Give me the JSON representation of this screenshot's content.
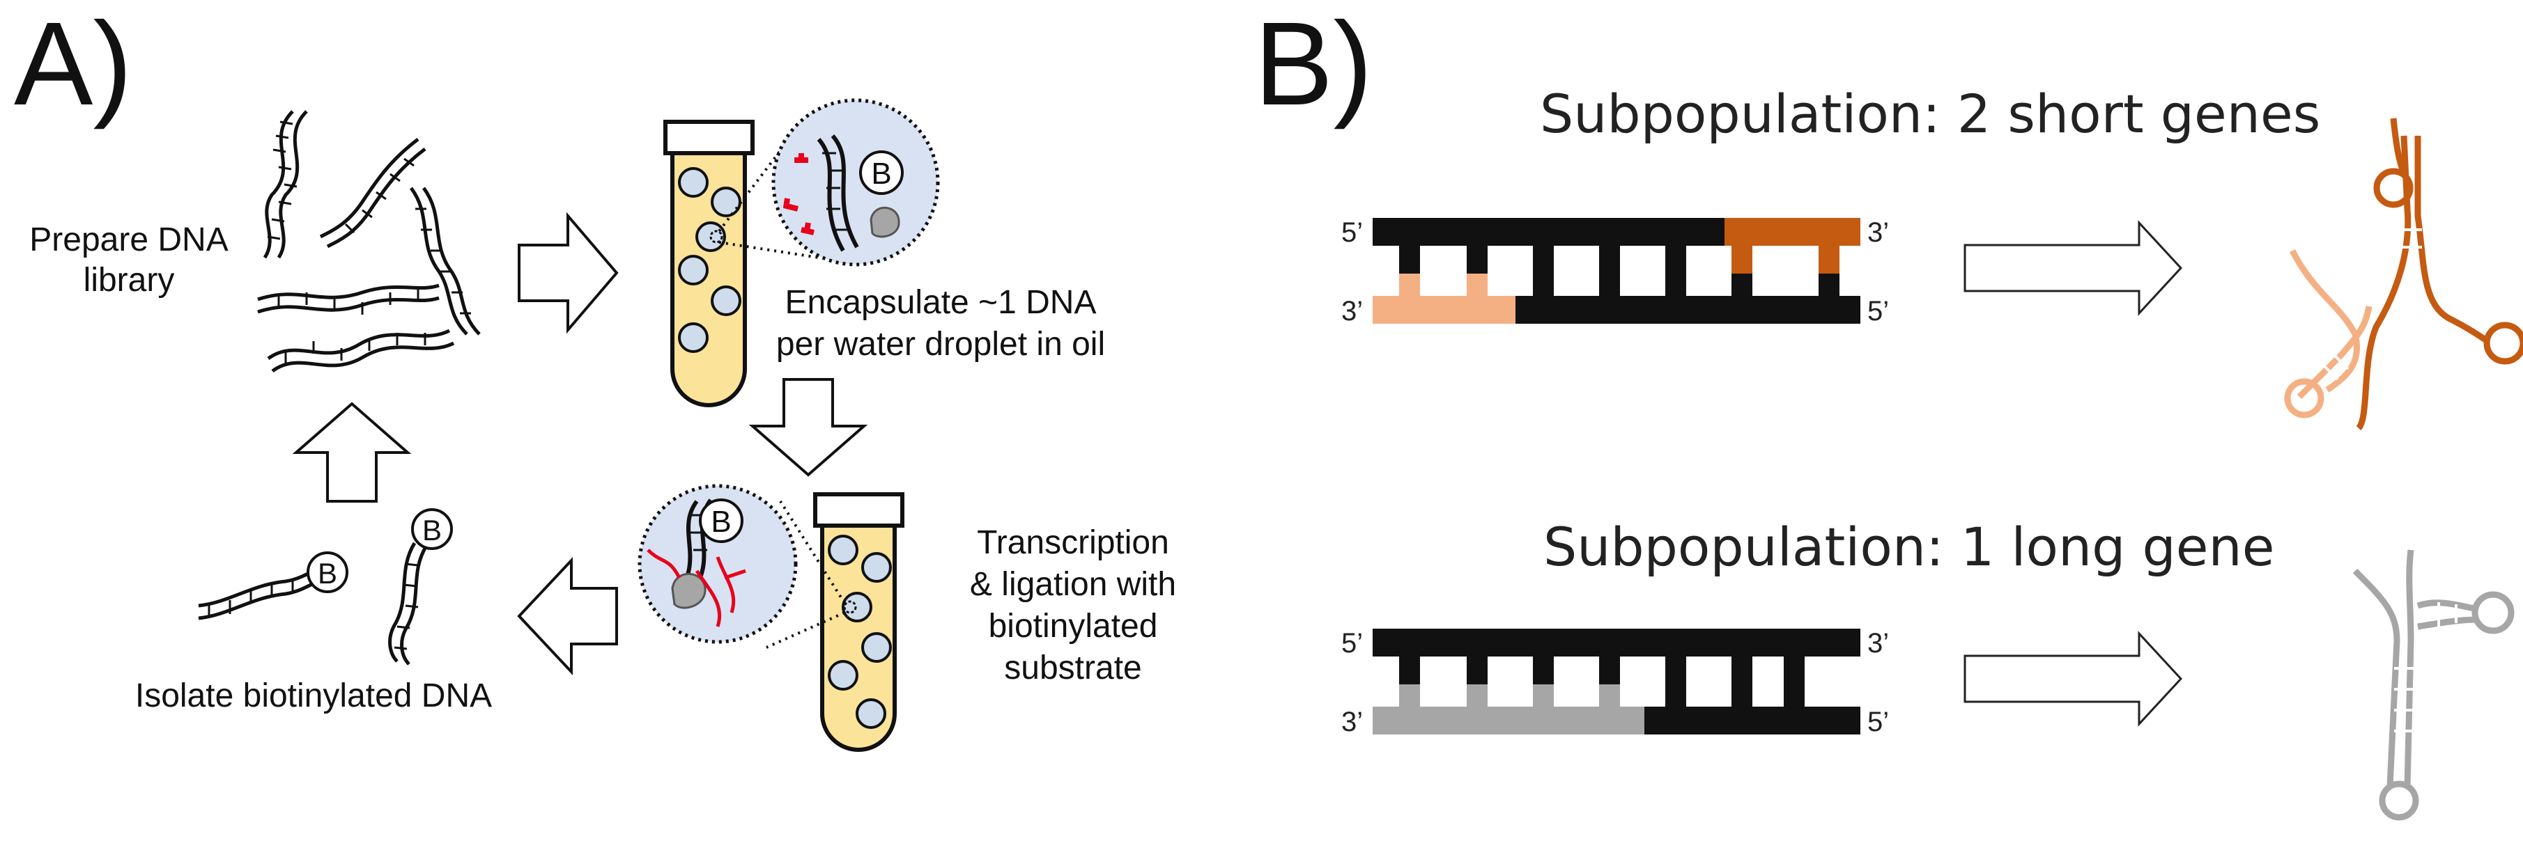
{
  "panel_a": {
    "label": "A)",
    "prepare_label_line1": "Prepare DNA",
    "prepare_label_line2": "library",
    "encapsulate_line1": "Encapsulate ~1 DNA",
    "encapsulate_line2": "per water droplet in oil",
    "transcription_line1": "Transcription",
    "transcription_line2": "& ligation with",
    "transcription_line3": "biotinylated",
    "transcription_line4": "substrate",
    "isolate_label": "Isolate biotinylated DNA",
    "biotin_letter": "B"
  },
  "panel_b": {
    "label": "B)",
    "sub1_title": "Subpopulation: 2 short genes",
    "sub2_title": "Subpopulation: 1 long gene",
    "end_5": "5’",
    "end_3": "3’"
  },
  "colors": {
    "tube_fill": "#fbe39a",
    "droplet": "#cfdcec",
    "zoom_bg": "#d9e2f2",
    "light_orange": "#f4b083",
    "dark_orange": "#c55a11",
    "grey": "#a6a6a6",
    "red": "#e8001c"
  }
}
